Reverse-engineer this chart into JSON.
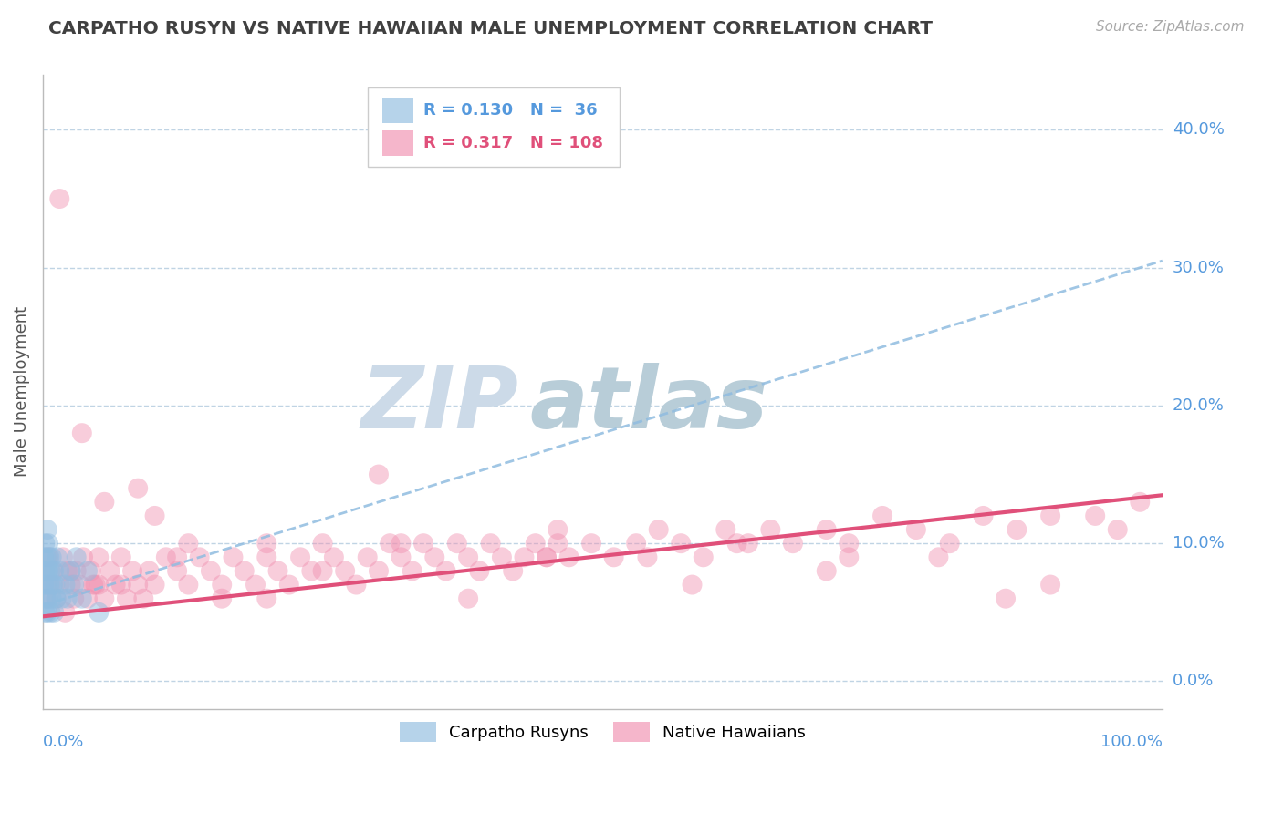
{
  "title": "CARPATHO RUSYN VS NATIVE HAWAIIAN MALE UNEMPLOYMENT CORRELATION CHART",
  "source": "Source: ZipAtlas.com",
  "ylabel": "Male Unemployment",
  "ytick_labels": [
    "0.0%",
    "10.0%",
    "20.0%",
    "30.0%",
    "40.0%"
  ],
  "ytick_values": [
    0.0,
    0.1,
    0.2,
    0.3,
    0.4
  ],
  "xmin": 0.0,
  "xmax": 1.0,
  "ymin": -0.02,
  "ymax": 0.44,
  "blue_N": 36,
  "pink_N": 108,
  "blue_R": 0.13,
  "pink_R": 0.317,
  "blue_color": "#90bce0",
  "pink_color": "#f090b0",
  "blue_line_color": "#90bce0",
  "pink_line_color": "#e0507a",
  "background_color": "#ffffff",
  "grid_color": "#c0d4e4",
  "title_color": "#404040",
  "source_color": "#aaaaaa",
  "tick_label_color": "#5599dd",
  "watermark_color_zip": "#d0dce8",
  "watermark_color_atlas": "#c8dde8",
  "blue_scatter_x": [
    0.001,
    0.001,
    0.002,
    0.002,
    0.002,
    0.003,
    0.003,
    0.003,
    0.004,
    0.004,
    0.004,
    0.005,
    0.005,
    0.005,
    0.006,
    0.006,
    0.007,
    0.007,
    0.008,
    0.008,
    0.009,
    0.01,
    0.01,
    0.011,
    0.012,
    0.013,
    0.015,
    0.017,
    0.02,
    0.022,
    0.025,
    0.028,
    0.03,
    0.035,
    0.04,
    0.05
  ],
  "blue_scatter_y": [
    0.07,
    0.09,
    0.05,
    0.08,
    0.1,
    0.06,
    0.07,
    0.09,
    0.05,
    0.08,
    0.11,
    0.06,
    0.08,
    0.1,
    0.07,
    0.09,
    0.05,
    0.08,
    0.06,
    0.09,
    0.07,
    0.05,
    0.08,
    0.07,
    0.06,
    0.09,
    0.08,
    0.06,
    0.07,
    0.06,
    0.08,
    0.07,
    0.09,
    0.06,
    0.08,
    0.05
  ],
  "pink_scatter_x": [
    0.003,
    0.005,
    0.007,
    0.009,
    0.012,
    0.015,
    0.018,
    0.02,
    0.022,
    0.025,
    0.028,
    0.03,
    0.033,
    0.036,
    0.04,
    0.043,
    0.047,
    0.05,
    0.055,
    0.06,
    0.065,
    0.07,
    0.075,
    0.08,
    0.085,
    0.09,
    0.095,
    0.1,
    0.11,
    0.12,
    0.13,
    0.14,
    0.15,
    0.16,
    0.17,
    0.18,
    0.19,
    0.2,
    0.21,
    0.22,
    0.23,
    0.24,
    0.25,
    0.26,
    0.27,
    0.28,
    0.29,
    0.3,
    0.31,
    0.32,
    0.33,
    0.34,
    0.35,
    0.36,
    0.37,
    0.38,
    0.39,
    0.4,
    0.41,
    0.42,
    0.43,
    0.44,
    0.45,
    0.46,
    0.47,
    0.49,
    0.51,
    0.53,
    0.55,
    0.57,
    0.59,
    0.61,
    0.63,
    0.65,
    0.67,
    0.7,
    0.72,
    0.75,
    0.78,
    0.81,
    0.84,
    0.87,
    0.9,
    0.94,
    0.96,
    0.98,
    0.015,
    0.025,
    0.035,
    0.045,
    0.055,
    0.07,
    0.085,
    0.1,
    0.13,
    0.16,
    0.2,
    0.25,
    0.3,
    0.38,
    0.46,
    0.54,
    0.62,
    0.7,
    0.8,
    0.9,
    0.05,
    0.12,
    0.2,
    0.32,
    0.45,
    0.58,
    0.72,
    0.86
  ],
  "pink_scatter_y": [
    0.06,
    0.09,
    0.07,
    0.08,
    0.06,
    0.07,
    0.09,
    0.05,
    0.08,
    0.07,
    0.06,
    0.08,
    0.07,
    0.09,
    0.06,
    0.08,
    0.07,
    0.09,
    0.06,
    0.08,
    0.07,
    0.09,
    0.06,
    0.08,
    0.07,
    0.06,
    0.08,
    0.07,
    0.09,
    0.08,
    0.07,
    0.09,
    0.08,
    0.07,
    0.09,
    0.08,
    0.07,
    0.09,
    0.08,
    0.07,
    0.09,
    0.08,
    0.1,
    0.09,
    0.08,
    0.07,
    0.09,
    0.08,
    0.1,
    0.09,
    0.08,
    0.1,
    0.09,
    0.08,
    0.1,
    0.09,
    0.08,
    0.1,
    0.09,
    0.08,
    0.09,
    0.1,
    0.09,
    0.1,
    0.09,
    0.1,
    0.09,
    0.1,
    0.11,
    0.1,
    0.09,
    0.11,
    0.1,
    0.11,
    0.1,
    0.11,
    0.1,
    0.12,
    0.11,
    0.1,
    0.12,
    0.11,
    0.12,
    0.12,
    0.11,
    0.13,
    0.35,
    0.08,
    0.18,
    0.07,
    0.13,
    0.07,
    0.14,
    0.12,
    0.1,
    0.06,
    0.1,
    0.08,
    0.15,
    0.06,
    0.11,
    0.09,
    0.1,
    0.08,
    0.09,
    0.07,
    0.07,
    0.09,
    0.06,
    0.1,
    0.09,
    0.07,
    0.09,
    0.06
  ],
  "blue_trend_x0": 0.0,
  "blue_trend_y0": 0.055,
  "blue_trend_x1": 1.0,
  "blue_trend_y1": 0.305,
  "pink_trend_x0": 0.0,
  "pink_trend_y0": 0.047,
  "pink_trend_x1": 1.0,
  "pink_trend_y1": 0.135
}
